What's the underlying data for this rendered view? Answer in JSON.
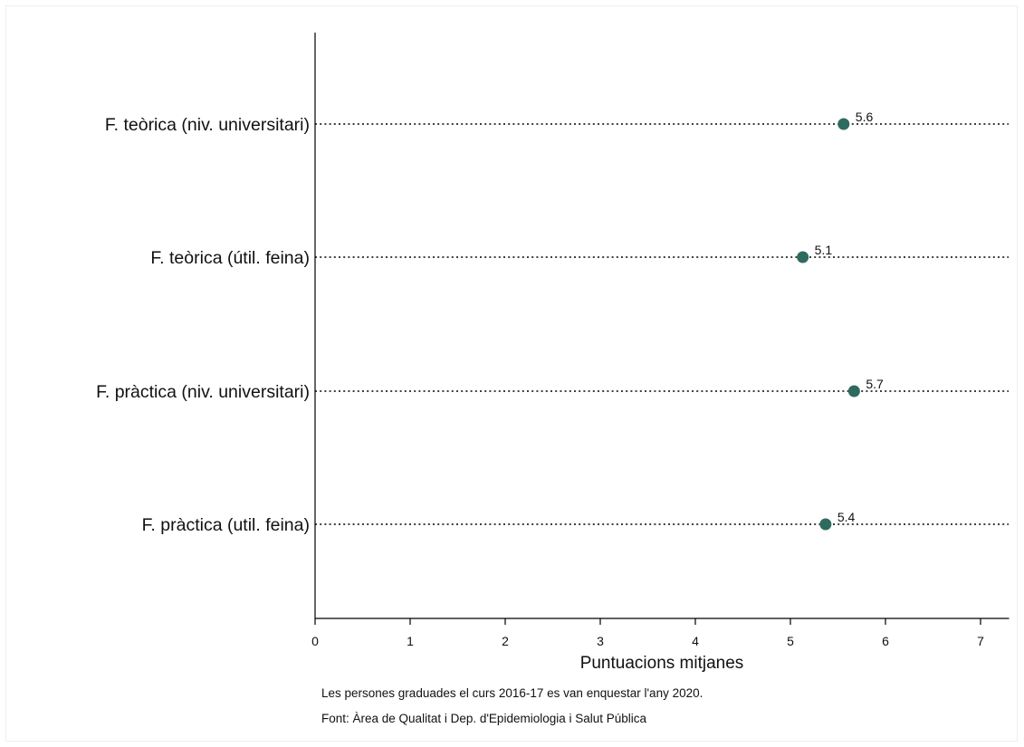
{
  "chart_data": {
    "type": "scatter",
    "orientation": "horizontal-dot",
    "categories": [
      "F. teòrica (niv. universitari)",
      "F. teòrica (útil. feina)",
      "F. pràctica (niv. universitari)",
      "F. pràctica (util. feina)"
    ],
    "values": [
      5.56,
      5.13,
      5.67,
      5.37
    ],
    "value_labels": [
      "5.6",
      "5.1",
      "5.7",
      "5.4"
    ],
    "xlabel": "Puntuacions mitjanes",
    "xlim": [
      0,
      7.3
    ],
    "xticks": [
      0,
      1,
      2,
      3,
      4,
      5,
      6,
      7
    ],
    "grid": "dotted horizontal lines per category",
    "marker_color": "#2e6b5e"
  },
  "notes": {
    "line1": "Les persones graduades el curs 2016-17 es van enquestar l'any 2020.",
    "line2": "Font: Àrea de Qualitat i Dep. d'Epidemiologia i Salut Pública"
  }
}
